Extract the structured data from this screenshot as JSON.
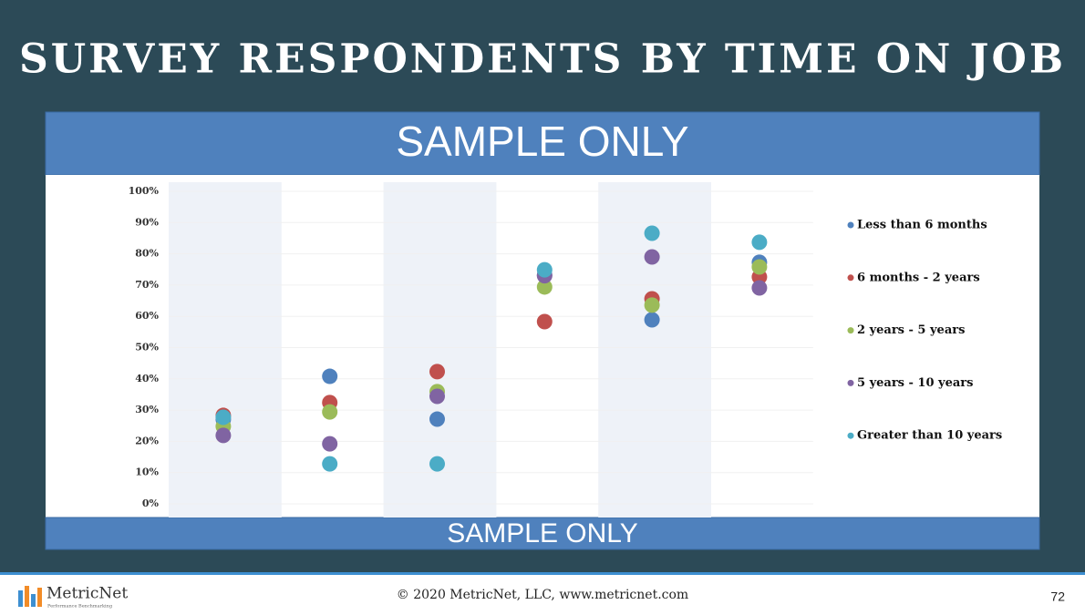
{
  "title": "SURVEY RESPONDENTS BY TIME ON JOB",
  "banner_top": "SAMPLE ONLY",
  "banner_bottom": "SAMPLE ONLY",
  "chart_data": {
    "type": "scatter",
    "categories": [
      null,
      null,
      null,
      null,
      null,
      null
    ],
    "ylim": [
      0,
      100
    ],
    "yticks": [
      {
        "value": 0,
        "label": "0%"
      },
      {
        "value": 10,
        "label": "10%"
      },
      {
        "value": 20,
        "label": "20%"
      },
      {
        "value": 30,
        "label": "30%"
      },
      {
        "value": 40,
        "label": "40%"
      },
      {
        "value": 50,
        "label": "50%"
      },
      {
        "value": 60,
        "label": "60%"
      },
      {
        "value": 70,
        "label": "70%"
      },
      {
        "value": 80,
        "label": "80%"
      },
      {
        "value": 90,
        "label": "90%"
      },
      {
        "value": 100,
        "label": "100%"
      }
    ],
    "grid": true,
    "legend": "right",
    "series": [
      {
        "name": "Less than 6 months",
        "color": "#4f81bd",
        "values": [
          27,
          40.8,
          27.1,
          73.2,
          58.9,
          77.3
        ]
      },
      {
        "name": "6 months - 2 years",
        "color": "#c0504d",
        "values": [
          28.3,
          32.4,
          42.3,
          58.3,
          65.6,
          72.6
        ]
      },
      {
        "name": "2 years - 5 years",
        "color": "#9bbb59",
        "values": [
          24.8,
          29.4,
          35.9,
          69.4,
          63.6,
          75.8
        ]
      },
      {
        "name": "5 years - 10 years",
        "color": "#8064a2",
        "values": [
          21.9,
          19.2,
          34.4,
          73,
          79,
          69.1
        ]
      },
      {
        "name": "Greater than 10 years",
        "color": "#4bacc6",
        "values": [
          27.7,
          12.8,
          12.8,
          74.9,
          86.6,
          83.7
        ]
      }
    ]
  },
  "footer": {
    "logo": "MetricNet",
    "tagline": "Performance Benchmarking",
    "copyright": "© 2020 MetricNet, LLC, www.metricnet.com",
    "page": "72"
  }
}
